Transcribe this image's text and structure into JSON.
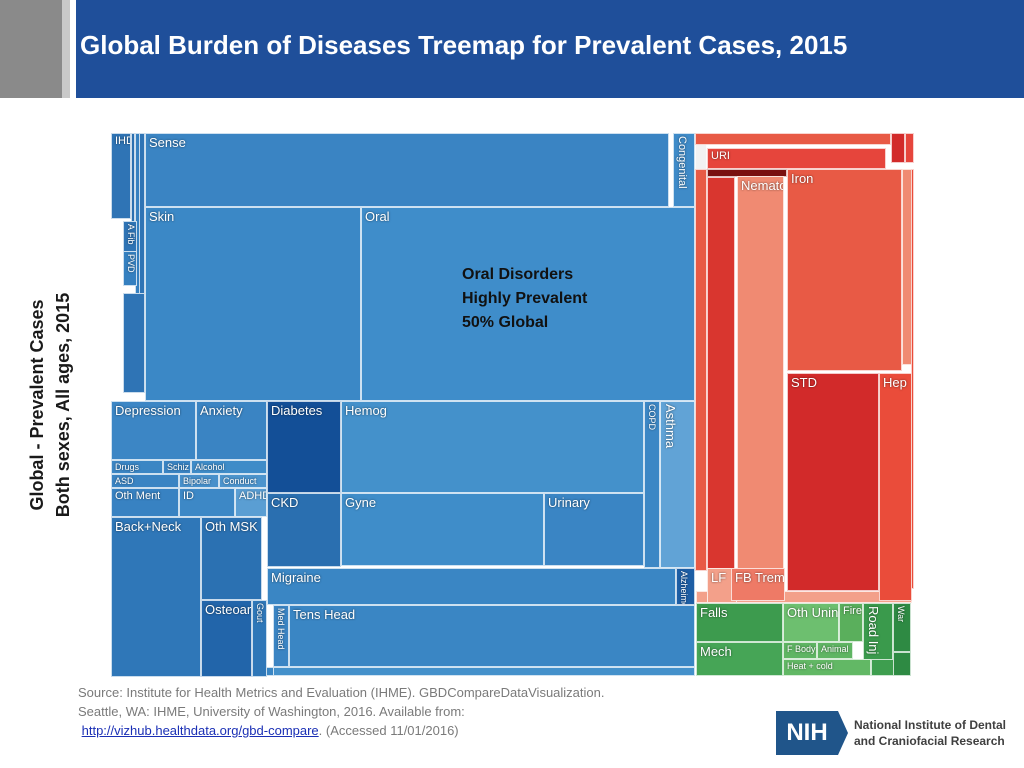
{
  "title": "Global Burden of Diseases Treemap for Prevalent Cases, 2015",
  "y_axis_label": {
    "line1": "Global - Prevalent Cases",
    "line2": "Both sexes, All ages, 2015"
  },
  "annotation": {
    "line1": "Oral Disorders",
    "line2": "Highly Prevalent",
    "line3": "50% Global"
  },
  "source": {
    "line1": "Source: Institute for Health Metrics and Evaluation (IHME). GBDCompareDataVisualization.",
    "line2": "Seattle, WA: IHME, University of Washington, 2016. Available from:",
    "link": "http://vizhub.healthdata.org/gbd-compare",
    "suffix": ". (Accessed 11/01/2016)"
  },
  "logo": {
    "abbrev": "NIH",
    "name_line1": "National Institute of Dental",
    "name_line2": "and Craniofacial Research"
  },
  "colors": {
    "header_blue": "#1f4f9a",
    "ncd_blue": "#3a86c4",
    "communicable_red": "#e8443a",
    "injury_green": "#3e9e4f"
  },
  "chart_data": {
    "type": "treemap",
    "annotation": "Oral Disorders Highly Prevalent 50% Global",
    "tiles": [
      {
        "label": "IHD",
        "group": "Non-communicable",
        "color": "#2f74b5"
      },
      {
        "label": "Sense",
        "group": "Non-communicable",
        "color": "#3a84c3"
      },
      {
        "label": "Congenital",
        "group": "Non-communicable",
        "color": "#3f8bc8"
      },
      {
        "label": "A Fib",
        "group": "Non-communicable",
        "color": "#2f74b5"
      },
      {
        "label": "PVD",
        "group": "Non-communicable",
        "color": "#3580c0"
      },
      {
        "label": "Skin",
        "group": "Non-communicable",
        "color": "#3b88c6"
      },
      {
        "label": "Oral",
        "group": "Non-communicable",
        "color": "#3f8dca"
      },
      {
        "label": "Depression",
        "group": "Non-communicable",
        "color": "#3c86c5"
      },
      {
        "label": "Anxiety",
        "group": "Non-communicable",
        "color": "#3a84c3"
      },
      {
        "label": "Drugs",
        "group": "Non-communicable",
        "color": "#3b86c4"
      },
      {
        "label": "Schiz",
        "group": "Non-communicable",
        "color": "#3a84c3"
      },
      {
        "label": "Alcohol",
        "group": "Non-communicable",
        "color": "#3f8cc8"
      },
      {
        "label": "ASD",
        "group": "Non-communicable",
        "color": "#3a84c3"
      },
      {
        "label": "Bipolar",
        "group": "Non-communicable",
        "color": "#4790cb"
      },
      {
        "label": "Conduct",
        "group": "Non-communicable",
        "color": "#4c94cd"
      },
      {
        "label": "Oth Ment",
        "group": "Non-communicable",
        "color": "#3882c2"
      },
      {
        "label": "ID",
        "group": "Non-communicable",
        "color": "#3d88c6"
      },
      {
        "label": "ADHD",
        "group": "Non-communicable",
        "color": "#5a9ed3"
      },
      {
        "label": "Diabetes",
        "group": "Non-communicable",
        "color": "#134f97"
      },
      {
        "label": "Hemog",
        "group": "Non-communicable",
        "color": "#4491cb"
      },
      {
        "label": "COPD",
        "group": "Non-communicable",
        "color": "#3c87c5"
      },
      {
        "label": "Asthma",
        "group": "Non-communicable",
        "color": "#61a3d6"
      },
      {
        "label": "CKD",
        "group": "Non-communicable",
        "color": "#2a6fb0"
      },
      {
        "label": "Gyne",
        "group": "Non-communicable",
        "color": "#3f8dc9"
      },
      {
        "label": "Urinary",
        "group": "Non-communicable",
        "color": "#3a85c4"
      },
      {
        "label": "Back+Neck",
        "group": "Non-communicable",
        "color": "#2f77b8"
      },
      {
        "label": "Oth MSK",
        "group": "Non-communicable",
        "color": "#2b71b2"
      },
      {
        "label": "Osteoarth",
        "group": "Non-communicable",
        "color": "#2265aa"
      },
      {
        "label": "Gout",
        "group": "Non-communicable",
        "color": "#2f77b8"
      },
      {
        "label": "Migraine",
        "group": "Non-communicable",
        "color": "#3a86c4"
      },
      {
        "label": "Alzheimer",
        "group": "Non-communicable",
        "color": "#1d5ea5"
      },
      {
        "label": "Med Head",
        "group": "Non-communicable",
        "color": "#3a84c3"
      },
      {
        "label": "Tens Head",
        "group": "Non-communicable",
        "color": "#3a86c4"
      },
      {
        "label": "URI",
        "group": "Communicable",
        "color": "#e6453c"
      },
      {
        "label": "Nematode",
        "group": "Communicable",
        "color": "#f08a72"
      },
      {
        "label": "Iron",
        "group": "Communicable",
        "color": "#e85a45"
      },
      {
        "label": "STD",
        "group": "Communicable",
        "color": "#d22a2a"
      },
      {
        "label": "Hep",
        "group": "Communicable",
        "color": "#ea4c3a"
      },
      {
        "label": "LF",
        "group": "Communicable",
        "color": "#f3a08a"
      },
      {
        "label": "FB Trema",
        "group": "Communicable",
        "color": "#ee7a66"
      },
      {
        "label": "Falls",
        "group": "Injuries",
        "color": "#3d9b4e"
      },
      {
        "label": "Oth Unint",
        "group": "Injuries",
        "color": "#6dbf6f"
      },
      {
        "label": "Fire",
        "group": "Injuries",
        "color": "#5aaf5c"
      },
      {
        "label": "Road Inj",
        "group": "Injuries",
        "color": "#3a9a4c"
      },
      {
        "label": "War",
        "group": "Injuries",
        "color": "#2e8a43"
      },
      {
        "label": "Mech",
        "group": "Injuries",
        "color": "#46a556"
      },
      {
        "label": "F Body",
        "group": "Injuries",
        "color": "#5fb563"
      },
      {
        "label": "Animal",
        "group": "Injuries",
        "color": "#5fb563"
      },
      {
        "label": "Heat + cold",
        "group": "Injuries",
        "color": "#62b865"
      }
    ]
  }
}
